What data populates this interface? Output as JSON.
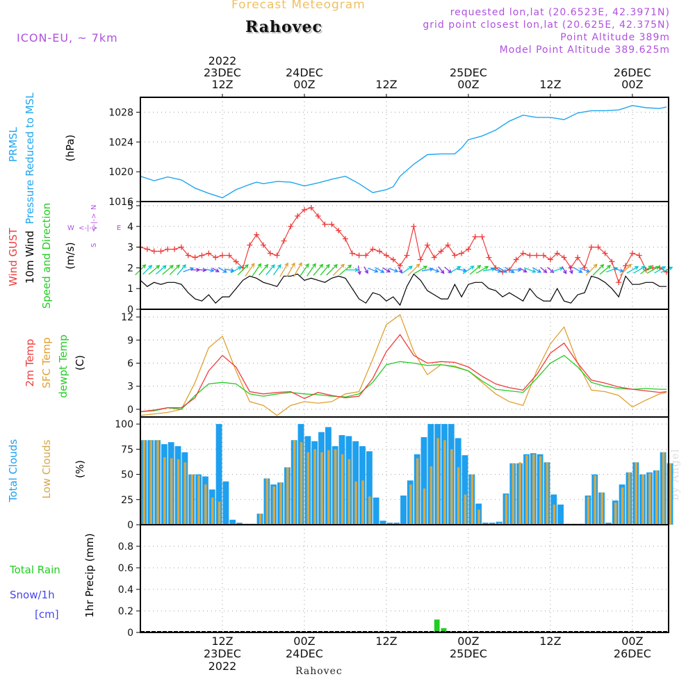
{
  "header": {
    "product": "Forecast Meteogram",
    "location": "Rahovec",
    "model": "ICON-EU, ~ 7km",
    "requested": "requested lon,lat (20.6523E, 42.3971N)",
    "gridpoint": "grid point closest lon,lat (20.625E, 42.375N)",
    "point_altitude": "Point Altitude 389m",
    "model_altitude": "Model Point Altitude 389.625m",
    "footer_location": "Rahovec",
    "watermark": "by Angel"
  },
  "colors": {
    "pressure": "#1ea6ee",
    "gust": "#ee3b3b",
    "wind": "#000000",
    "wind_dir": "#22cc22",
    "temp": "#ee3b3b",
    "sfc_temp": "#e0a030",
    "dewpt": "#22cc22",
    "total_clouds": "#1ea0ee",
    "low_clouds": "#d4a84a",
    "rain": "#22cc22",
    "snow": "#4444ee",
    "title": "#f0c060",
    "meta": "#b050e0"
  },
  "time_axis": {
    "top_labels": [
      {
        "h": 12,
        "lines": [
          "2022",
          "23DEC",
          "12Z"
        ]
      },
      {
        "h": 24,
        "lines": [
          "24DEC",
          "00Z"
        ]
      },
      {
        "h": 36,
        "lines": [
          "12Z"
        ]
      },
      {
        "h": 48,
        "lines": [
          "25DEC",
          "00Z"
        ]
      },
      {
        "h": 60,
        "lines": [
          "12Z"
        ]
      },
      {
        "h": 72,
        "lines": [
          "26DEC",
          "00Z"
        ]
      }
    ],
    "bottom_labels": [
      {
        "h": 12,
        "lines": [
          "12Z",
          "23DEC",
          "2022"
        ]
      },
      {
        "h": 24,
        "lines": [
          "00Z",
          "24DEC"
        ]
      },
      {
        "h": 36,
        "lines": [
          "12Z"
        ]
      },
      {
        "h": 48,
        "lines": [
          "00Z",
          "25DEC"
        ]
      },
      {
        "h": 60,
        "lines": [
          "12Z"
        ]
      },
      {
        "h": 72,
        "lines": [
          "00Z",
          "26DEC"
        ]
      }
    ]
  },
  "panels": {
    "pressure": {
      "labels": [
        {
          "text": "PRMSL",
          "color": "#1ea6ee"
        },
        {
          "text": "Pressure Reduced to MSL",
          "color": "#1ea6ee"
        },
        {
          "text": "(hPa)",
          "color": "#000000"
        }
      ]
    },
    "wind": {
      "labels": [
        {
          "text": "Wind GUST",
          "color": "#ee3b3b"
        },
        {
          "text": "10m Wind",
          "color": "#000000"
        },
        {
          "text": "Speed and Direction",
          "color": "#22cc22"
        },
        {
          "text": "(m/s)",
          "color": "#000000"
        }
      ],
      "compass": {
        "w": "W",
        "e": "E",
        "n": "N",
        "s": "S"
      }
    },
    "temp": {
      "labels": [
        {
          "text": "2m Temp",
          "color": "#ee3b3b"
        },
        {
          "text": "SFC Temp",
          "color": "#e0a030"
        },
        {
          "text": "dewpt Temp",
          "color": "#22cc22"
        },
        {
          "text": "(C)",
          "color": "#000000"
        }
      ]
    },
    "clouds": {
      "labels": [
        {
          "text": "Total Clouds",
          "color": "#1ea0ee"
        },
        {
          "text": "Low Clouds",
          "color": "#d4a84a"
        },
        {
          "text": "(%)",
          "color": "#000000"
        }
      ]
    },
    "precip": {
      "labels": [
        {
          "text": "1hr Precip (mm)",
          "color": "#000000"
        }
      ],
      "legend": [
        {
          "text": "Total Rain",
          "color": "#22cc22"
        },
        {
          "text": "Snow/1h",
          "color": "#4444ee"
        },
        {
          "text": "[cm]",
          "color": "#4444ee"
        }
      ]
    }
  },
  "chart_data": [
    {
      "type": "line",
      "series_name": "PRMSL",
      "ylabel": "(hPa)",
      "ylim": [
        1016,
        1030
      ],
      "yticks": [
        1016,
        1020,
        1024,
        1028
      ],
      "grid": true,
      "x_hours": [
        0,
        2,
        4,
        6,
        8,
        10,
        12,
        14,
        16,
        17,
        18,
        20,
        22,
        24,
        26,
        28,
        30,
        32,
        34,
        36,
        37,
        38,
        40,
        42,
        44,
        46,
        47,
        48,
        50,
        52,
        54,
        56,
        58,
        60,
        62,
        64,
        66,
        68,
        70,
        72,
        74,
        76,
        77
      ],
      "values": [
        1019.4,
        1018.8,
        1019.3,
        1018.9,
        1017.8,
        1017.1,
        1016.5,
        1017.6,
        1018.3,
        1018.6,
        1018.4,
        1018.7,
        1018.6,
        1018.1,
        1018.5,
        1019.0,
        1019.4,
        1018.4,
        1017.2,
        1017.6,
        1018.0,
        1019.4,
        1021.0,
        1022.3,
        1022.4,
        1022.4,
        1023.2,
        1024.3,
        1024.8,
        1025.6,
        1026.8,
        1027.6,
        1027.3,
        1027.3,
        1027.0,
        1027.9,
        1028.2,
        1028.2,
        1028.3,
        1028.9,
        1028.6,
        1028.5,
        1028.7
      ]
    },
    {
      "type": "line",
      "ylabel": "(m/s)",
      "ylim": [
        0,
        5.2
      ],
      "yticks": [
        0,
        1,
        2,
        3,
        4,
        5
      ],
      "grid": true,
      "x_hours": [
        0,
        1,
        2,
        3,
        4,
        5,
        6,
        7,
        8,
        9,
        10,
        11,
        12,
        13,
        14,
        15,
        16,
        17,
        18,
        19,
        20,
        21,
        22,
        23,
        24,
        25,
        26,
        27,
        28,
        29,
        30,
        31,
        32,
        33,
        34,
        35,
        36,
        37,
        38,
        39,
        40,
        41,
        42,
        43,
        44,
        45,
        46,
        47,
        48,
        49,
        50,
        51,
        52,
        53,
        54,
        55,
        56,
        57,
        58,
        59,
        60,
        61,
        62,
        63,
        64,
        65,
        66,
        67,
        68,
        69,
        70,
        71,
        72,
        73,
        74,
        75,
        76,
        77
      ],
      "gust": [
        3.0,
        2.9,
        2.8,
        2.8,
        2.9,
        2.9,
        3.0,
        2.6,
        2.5,
        2.6,
        2.7,
        2.5,
        2.6,
        2.6,
        2.3,
        2.0,
        3.1,
        3.6,
        3.1,
        2.7,
        2.6,
        3.3,
        4.0,
        4.5,
        4.8,
        4.9,
        4.5,
        4.1,
        4.1,
        3.8,
        3.4,
        2.7,
        2.6,
        2.6,
        2.9,
        2.8,
        2.6,
        2.4,
        2.1,
        2.6,
        4.0,
        2.4,
        3.1,
        2.5,
        2.8,
        3.1,
        2.6,
        2.7,
        2.9,
        3.5,
        3.5,
        2.5,
        2.0,
        1.8,
        1.9,
        2.4,
        2.7,
        2.6,
        2.6,
        2.6,
        2.4,
        2.7,
        2.5,
        2.0,
        2.5,
        2.0,
        3.0,
        3.0,
        2.7,
        2.3,
        1.3,
        2.1,
        2.7,
        2.6,
        1.9,
        2.0,
        2.0,
        1.8
      ],
      "speed": [
        1.4,
        1.1,
        1.3,
        1.2,
        1.3,
        1.3,
        1.2,
        0.8,
        0.5,
        0.4,
        0.7,
        0.3,
        0.6,
        0.6,
        1.0,
        1.4,
        1.6,
        1.5,
        1.3,
        1.2,
        1.1,
        1.6,
        1.6,
        1.7,
        1.4,
        1.5,
        1.4,
        1.3,
        1.5,
        1.6,
        1.5,
        1.0,
        0.5,
        0.3,
        0.8,
        0.7,
        0.4,
        0.6,
        0.2,
        1.1,
        1.7,
        1.4,
        0.9,
        0.7,
        0.5,
        0.5,
        1.2,
        0.6,
        1.2,
        1.3,
        1.3,
        1.0,
        0.9,
        0.6,
        0.8,
        0.6,
        0.4,
        1.0,
        0.6,
        0.4,
        0.4,
        1.0,
        0.4,
        0.3,
        0.7,
        0.8,
        1.6,
        1.5,
        1.3,
        1.0,
        0.6,
        1.6,
        1.2,
        1.2,
        1.3,
        1.3,
        1.1,
        1.1
      ],
      "dir_deg": [
        225,
        225,
        230,
        230,
        230,
        225,
        220,
        250,
        270,
        275,
        280,
        300,
        300,
        280,
        240,
        225,
        215,
        215,
        220,
        220,
        215,
        210,
        210,
        210,
        215,
        215,
        220,
        220,
        225,
        225,
        230,
        270,
        350,
        330,
        290,
        300,
        300,
        290,
        330,
        235,
        225,
        240,
        260,
        290,
        320,
        310,
        240,
        280,
        235,
        230,
        240,
        260,
        290,
        300,
        300,
        270,
        300,
        290,
        300,
        310,
        310,
        250,
        330,
        340,
        300,
        290,
        225,
        225,
        230,
        250,
        290,
        225,
        240,
        240,
        235,
        240,
        240,
        245
      ],
      "dir_note": "direction the wind blows from, meteorological degrees"
    },
    {
      "type": "line",
      "ylabel": "(C)",
      "ylim": [
        -1,
        13
      ],
      "yticks": [
        0,
        3,
        6,
        9,
        12
      ],
      "grid": true,
      "x_hours": [
        0,
        2,
        4,
        6,
        8,
        10,
        12,
        14,
        16,
        18,
        20,
        22,
        24,
        26,
        28,
        30,
        32,
        34,
        36,
        38,
        40,
        42,
        44,
        46,
        48,
        50,
        52,
        54,
        56,
        58,
        60,
        62,
        64,
        66,
        68,
        70,
        72,
        74,
        76,
        77
      ],
      "temp_2m": [
        -0.3,
        -0.1,
        0.2,
        0.2,
        1.5,
        5.0,
        7.0,
        5.5,
        2.3,
        2.0,
        2.2,
        2.3,
        1.4,
        2.2,
        1.8,
        1.5,
        1.7,
        4.0,
        7.5,
        9.7,
        7.0,
        6.0,
        6.2,
        6.1,
        5.5,
        4.3,
        3.3,
        2.8,
        2.5,
        4.5,
        7.3,
        8.6,
        6.0,
        3.8,
        3.4,
        2.9,
        2.6,
        2.4,
        2.2,
        2.3
      ],
      "sfc_temp": [
        -0.8,
        -0.6,
        -0.4,
        0.0,
        3.5,
        8.0,
        9.5,
        5.0,
        1.0,
        0.5,
        -0.8,
        0.5,
        1.0,
        0.8,
        1.0,
        2.0,
        2.3,
        6.5,
        11.0,
        12.3,
        7.5,
        4.5,
        5.8,
        5.6,
        5.0,
        3.5,
        2.0,
        1.0,
        0.5,
        5.0,
        8.5,
        10.7,
        6.0,
        2.5,
        2.3,
        1.8,
        0.3,
        1.2,
        2.0,
        2.2
      ],
      "dewpt": [
        -0.3,
        -0.2,
        0.2,
        0.0,
        1.8,
        3.3,
        3.5,
        3.3,
        2.0,
        1.7,
        2.0,
        2.2,
        2.0,
        1.9,
        1.7,
        1.6,
        2.0,
        3.5,
        5.8,
        6.2,
        6.0,
        5.7,
        5.8,
        5.5,
        5.0,
        3.7,
        2.6,
        2.4,
        2.2,
        4.0,
        6.0,
        7.0,
        5.5,
        3.5,
        3.0,
        2.7,
        2.6,
        2.7,
        2.6,
        2.6
      ]
    },
    {
      "type": "bar",
      "ylabel": "(%)",
      "ylim": [
        0,
        107
      ],
      "yticks": [
        0,
        25,
        50,
        75,
        100
      ],
      "grid": true,
      "x_hours_start": 0,
      "x_hours_step": 1,
      "total": [
        84,
        84,
        84,
        80,
        82,
        78,
        72,
        50,
        50,
        48,
        35,
        100,
        43,
        5,
        2,
        1,
        1,
        11,
        46,
        40,
        42,
        57,
        84,
        100,
        88,
        83,
        92,
        97,
        78,
        89,
        88,
        83,
        78,
        73,
        27,
        4,
        2,
        2,
        29,
        44,
        70,
        87,
        100,
        100,
        100,
        100,
        86,
        69,
        50,
        21,
        2,
        2,
        3,
        31,
        61,
        61,
        70,
        71,
        70,
        62,
        30,
        20,
        1,
        1,
        1,
        29,
        50,
        32,
        2,
        24,
        40,
        52,
        62,
        50,
        52,
        54,
        72,
        61
      ],
      "low": [
        84,
        84,
        84,
        67,
        66,
        65,
        62,
        50,
        49,
        40,
        27,
        23,
        0,
        0,
        0,
        0,
        0,
        11,
        46,
        38,
        42,
        57,
        84,
        82,
        72,
        75,
        72,
        74,
        75,
        70,
        65,
        43,
        44,
        28,
        0,
        0,
        0,
        0,
        0,
        40,
        66,
        36,
        58,
        86,
        84,
        75,
        57,
        30,
        50,
        15,
        0,
        0,
        2,
        30,
        61,
        62,
        69,
        70,
        68,
        62,
        20,
        0,
        0,
        0,
        0,
        28,
        49,
        32,
        0,
        22,
        37,
        52,
        62,
        50,
        51,
        54,
        72,
        61
      ]
    },
    {
      "type": "bar",
      "ylabel": "1hr Precip (mm)",
      "ylim": [
        0,
        1
      ],
      "yticks": [
        0,
        0.2,
        0.4,
        0.6,
        0.8
      ],
      "grid": true,
      "x_hours": [
        43,
        44,
        45
      ],
      "rain_values": [
        0.12,
        0.04,
        0.01
      ],
      "snow_values": [
        0,
        0,
        0
      ]
    }
  ]
}
